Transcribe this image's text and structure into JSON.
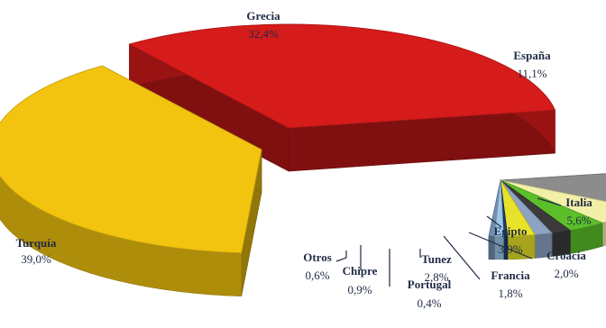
{
  "chart_data": {
    "type": "pie",
    "title": "",
    "style": "3d-exploded",
    "slices": [
      {
        "label": "Grecia",
        "value_text": "32,4%",
        "value": 32.4,
        "color": "#d61b1b"
      },
      {
        "label": "España",
        "value_text": "11,1%",
        "value": 11.1,
        "color": "#8c8c8c"
      },
      {
        "label": "Italia",
        "value_text": "5,6%",
        "value": 5.6,
        "color": "#f2f0a8"
      },
      {
        "label": "Egipto",
        "value_text": "3,9%",
        "value": 3.9,
        "color": "#5cbf2a"
      },
      {
        "label": "Croacia",
        "value_text": "2,0%",
        "value": 2.0,
        "color": "#3a3a3a"
      },
      {
        "label": "Francia",
        "value_text": "1,8%",
        "value": 1.8,
        "color": "#8ea3c4"
      },
      {
        "label": "Tunez",
        "value_text": "2,8%",
        "value": 2.8,
        "color": "#e8e22a"
      },
      {
        "label": "Portugal",
        "value_text": "0,4%",
        "value": 0.4,
        "color": "#1b3a6b"
      },
      {
        "label": "Chipre",
        "value_text": "0,9%",
        "value": 0.9,
        "color": "#9fc8e8"
      },
      {
        "label": "Otros",
        "value_text": "0,6%",
        "value": 0.6,
        "color": "#6f8fb0"
      },
      {
        "label": "Turquía",
        "value_text": "39,0%",
        "value": 39.0,
        "color": "#f2c40f"
      }
    ]
  }
}
